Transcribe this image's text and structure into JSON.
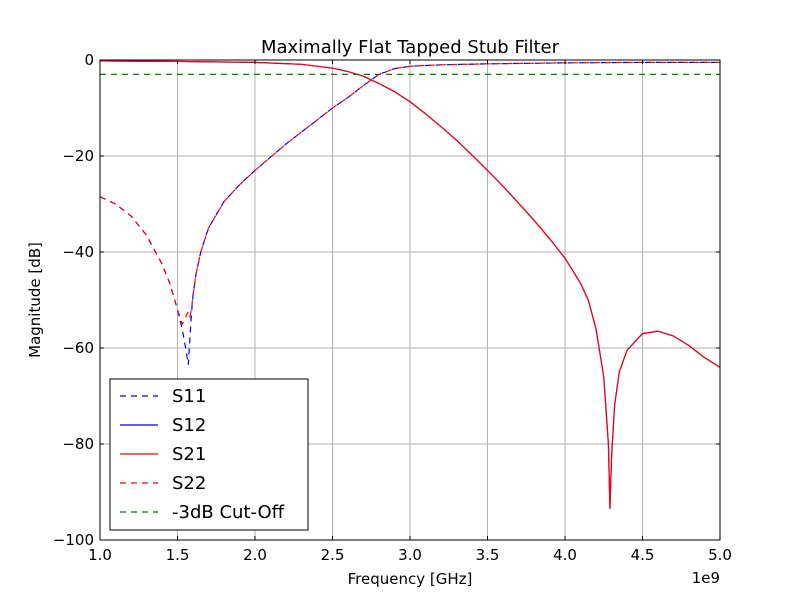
{
  "chart_data": {
    "type": "line",
    "title": "Maximally Flat Tapped Stub Filter",
    "xlabel": "Frequency [GHz]",
    "ylabel": "Magnitude [dB]",
    "x_offset_label": "1e9",
    "xlim": [
      1.0,
      5.0
    ],
    "ylim": [
      -100,
      0
    ],
    "xticks": [
      1.0,
      1.5,
      2.0,
      2.5,
      3.0,
      3.5,
      4.0,
      4.5,
      5.0
    ],
    "xtick_labels": [
      "1.0",
      "1.5",
      "2.0",
      "2.5",
      "3.0",
      "3.5",
      "4.0",
      "4.5",
      "5.0"
    ],
    "yticks": [
      0,
      -20,
      -40,
      -60,
      -80,
      -100
    ],
    "ytick_labels": [
      "0",
      "−20",
      "−40",
      "−60",
      "−80",
      "−100"
    ],
    "grid": true,
    "legend_position": "lower-left",
    "series": [
      {
        "name": "S11",
        "color": "#0000ff",
        "style": "dashed",
        "x": [
          1.0,
          1.1,
          1.2,
          1.3,
          1.4,
          1.45,
          1.5,
          1.53,
          1.55,
          1.57,
          1.58,
          1.59,
          1.6,
          1.62,
          1.65,
          1.7,
          1.8,
          1.9,
          2.0,
          2.2,
          2.4,
          2.5,
          2.6,
          2.7,
          2.8,
          2.9,
          3.0,
          3.2,
          3.5,
          4.0,
          4.5,
          5.0
        ],
        "y": [
          -28.5,
          -30.0,
          -32.5,
          -36.5,
          -42.5,
          -46.5,
          -52.0,
          -56.0,
          -59.5,
          -63.5,
          -58.0,
          -53.0,
          -49.0,
          -44.5,
          -40.0,
          -35.0,
          -29.5,
          -26.0,
          -23.0,
          -17.5,
          -12.5,
          -10.0,
          -7.8,
          -5.3,
          -3.0,
          -1.8,
          -1.3,
          -1.0,
          -0.8,
          -0.6,
          -0.5,
          -0.5
        ]
      },
      {
        "name": "S12",
        "color": "#0000ff",
        "style": "solid",
        "x": [
          1.0,
          1.5,
          2.0,
          2.3,
          2.5,
          2.6,
          2.7,
          2.8,
          2.9,
          3.0,
          3.1,
          3.2,
          3.3,
          3.4,
          3.5,
          3.6,
          3.7,
          3.8,
          3.9,
          4.0,
          4.1,
          4.15,
          4.2,
          4.25,
          4.28,
          4.29,
          4.3,
          4.32,
          4.35,
          4.4,
          4.5,
          4.6,
          4.7,
          4.8,
          4.9,
          5.0
        ],
        "y": [
          -0.2,
          -0.3,
          -0.5,
          -0.9,
          -1.7,
          -2.4,
          -3.4,
          -4.9,
          -6.6,
          -8.7,
          -11.2,
          -13.9,
          -16.7,
          -19.8,
          -23.0,
          -26.3,
          -29.8,
          -33.4,
          -37.2,
          -41.3,
          -46.5,
          -50.0,
          -56.0,
          -66.0,
          -80.0,
          -93.5,
          -83.0,
          -72.0,
          -65.0,
          -60.5,
          -57.0,
          -56.5,
          -57.5,
          -59.5,
          -62.0,
          -64.0
        ]
      },
      {
        "name": "S21",
        "color": "#ff0000",
        "style": "solid",
        "x": [
          1.0,
          1.5,
          2.0,
          2.3,
          2.5,
          2.6,
          2.7,
          2.8,
          2.9,
          3.0,
          3.1,
          3.2,
          3.3,
          3.4,
          3.5,
          3.6,
          3.7,
          3.8,
          3.9,
          4.0,
          4.1,
          4.15,
          4.2,
          4.25,
          4.28,
          4.29,
          4.3,
          4.32,
          4.35,
          4.4,
          4.5,
          4.6,
          4.7,
          4.8,
          4.9,
          5.0
        ],
        "y": [
          -0.2,
          -0.3,
          -0.5,
          -0.9,
          -1.7,
          -2.4,
          -3.4,
          -4.9,
          -6.6,
          -8.7,
          -11.2,
          -13.9,
          -16.7,
          -19.8,
          -23.0,
          -26.3,
          -29.8,
          -33.4,
          -37.2,
          -41.3,
          -46.5,
          -50.0,
          -56.0,
          -66.0,
          -80.0,
          -93.5,
          -83.0,
          -72.0,
          -65.0,
          -60.5,
          -57.0,
          -56.5,
          -57.5,
          -59.5,
          -62.0,
          -64.0
        ]
      },
      {
        "name": "S22",
        "color": "#ff0000",
        "style": "dashed",
        "x": [
          1.0,
          1.1,
          1.2,
          1.3,
          1.4,
          1.45,
          1.5,
          1.53,
          1.55,
          1.56,
          1.57,
          1.58,
          1.59,
          1.6,
          1.62,
          1.65,
          1.7,
          1.8,
          1.9,
          2.0,
          2.2,
          2.4,
          2.5,
          2.6,
          2.7,
          2.8,
          2.9,
          3.0,
          3.2,
          3.5,
          4.0,
          4.5,
          5.0
        ],
        "y": [
          -28.5,
          -30.0,
          -32.5,
          -36.5,
          -42.5,
          -46.5,
          -52.0,
          -55.0,
          -54.0,
          -53.0,
          -52.5,
          -53.5,
          -52.0,
          -49.0,
          -44.5,
          -40.0,
          -35.0,
          -29.5,
          -26.0,
          -23.0,
          -17.5,
          -12.5,
          -10.0,
          -7.8,
          -5.3,
          -3.0,
          -1.8,
          -1.3,
          -1.0,
          -0.8,
          -0.6,
          -0.5,
          -0.5
        ]
      },
      {
        "name": "-3dB Cut-Off",
        "color": "#008000",
        "style": "dashed",
        "x": [
          1.0,
          5.0
        ],
        "y": [
          -3,
          -3
        ]
      }
    ]
  }
}
